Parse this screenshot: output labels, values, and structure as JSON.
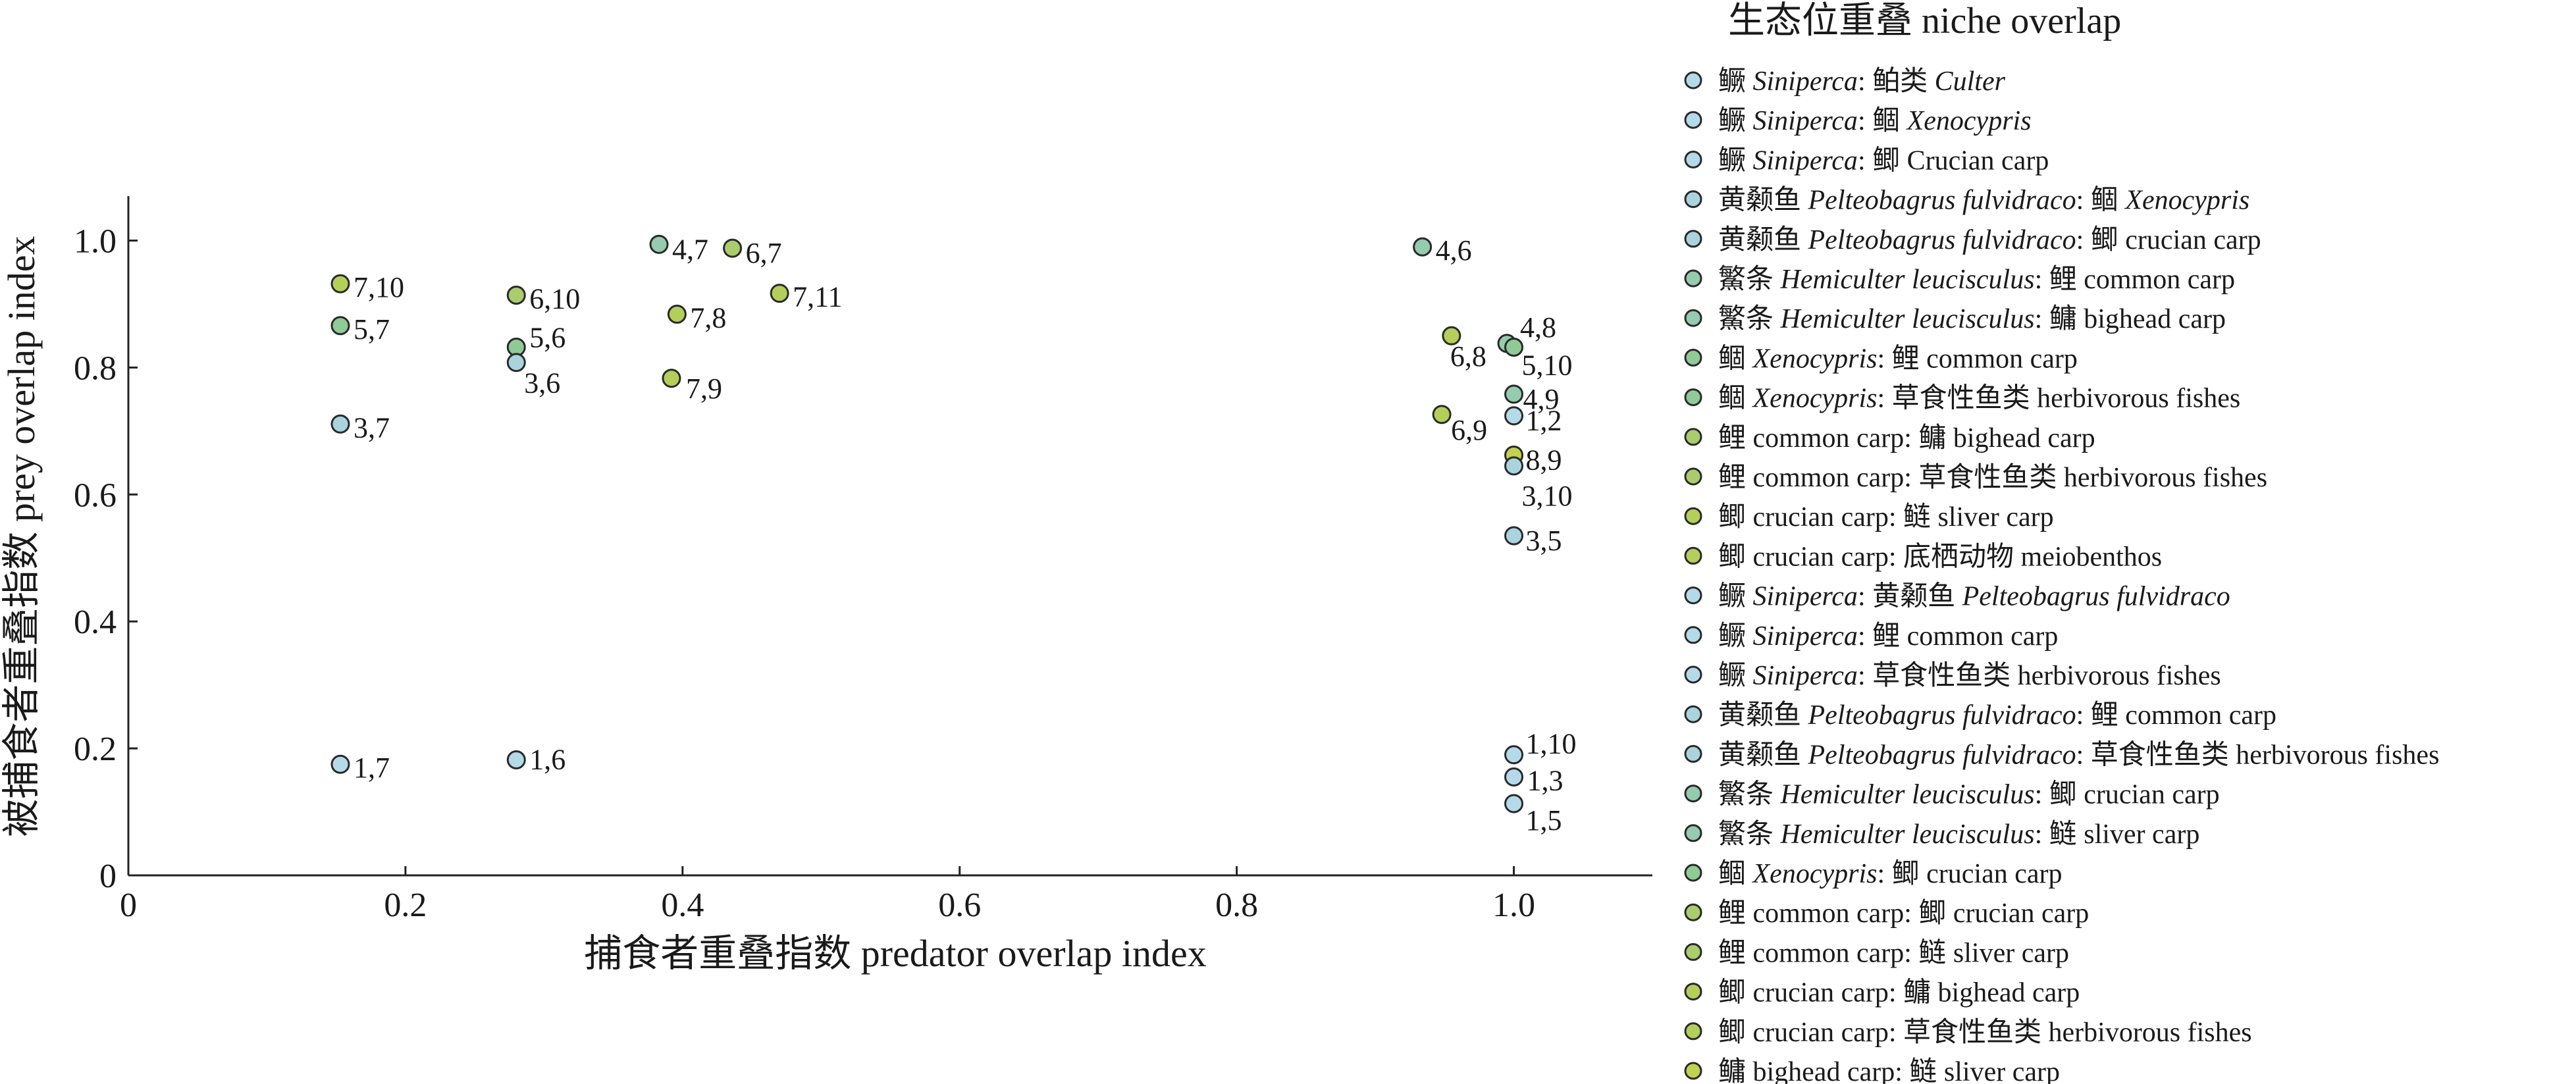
{
  "chart_data": {
    "type": "scatter",
    "xlabel": "捕食者重叠指数 predator overlap index",
    "ylabel": "被捕食者重叠指数 prey overlap index",
    "xlim": [
      0,
      1.1
    ],
    "ylim": [
      0,
      1.07
    ],
    "x_ticks": [
      0,
      0.2,
      0.4,
      0.6,
      0.8,
      1.0
    ],
    "x_tick_labels": [
      "0",
      "0.2",
      "0.4",
      "0.6",
      "0.8",
      "1.0"
    ],
    "y_ticks": [
      0,
      0.2,
      0.4,
      0.6,
      0.8,
      1.0
    ],
    "y_tick_labels": [
      "0",
      "0.2",
      "0.4",
      "0.6",
      "0.8",
      "1.0"
    ],
    "legend_title": "生态位重叠 niche overlap",
    "legend_position": "right",
    "grid": false,
    "points": [
      {
        "label": "7,10",
        "x": 0.153,
        "y": 0.932,
        "color": "#b3cf5a"
      },
      {
        "label": "5,7",
        "x": 0.153,
        "y": 0.866,
        "color": "#8fcb96"
      },
      {
        "label": "3,7",
        "x": 0.153,
        "y": 0.711,
        "color": "#a9d4dd"
      },
      {
        "label": "1,7",
        "x": 0.153,
        "y": 0.175,
        "color": "#b4daea"
      },
      {
        "label": "6,10",
        "x": 0.28,
        "y": 0.914,
        "color": "#a9cd6c"
      },
      {
        "label": "5,6",
        "x": 0.28,
        "y": 0.832,
        "color": "#8fcb96"
      },
      {
        "label": "3,6",
        "x": 0.28,
        "y": 0.808,
        "color": "#a9d4dd"
      },
      {
        "label": "1,6",
        "x": 0.28,
        "y": 0.182,
        "color": "#b4daea"
      },
      {
        "label": "4,7",
        "x": 0.383,
        "y": 0.994,
        "color": "#95cbae"
      },
      {
        "label": "6,7",
        "x": 0.436,
        "y": 0.988,
        "color": "#a9cd6c"
      },
      {
        "label": "7,8",
        "x": 0.396,
        "y": 0.884,
        "color": "#b3cf5a"
      },
      {
        "label": "7,11",
        "x": 0.47,
        "y": 0.917,
        "color": "#b3cf5a"
      },
      {
        "label": "7,9",
        "x": 0.392,
        "y": 0.783,
        "color": "#b3cf5a"
      },
      {
        "label": "4,6",
        "x": 0.934,
        "y": 0.99,
        "color": "#95cbae"
      },
      {
        "label": "6,8",
        "x": 0.955,
        "y": 0.85,
        "color": "#b3cf5a"
      },
      {
        "label": "4,8",
        "x": 0.995,
        "y": 0.838,
        "color": "#95cbae"
      },
      {
        "label": "5,10",
        "x": 1.0,
        "y": 0.832,
        "color": "#8fcb96"
      },
      {
        "label": "4,9",
        "x": 1.0,
        "y": 0.758,
        "color": "#95cbae"
      },
      {
        "label": "6,9",
        "x": 0.948,
        "y": 0.726,
        "color": "#b3cf5a"
      },
      {
        "label": "1,2",
        "x": 1.0,
        "y": 0.724,
        "color": "#b4daea"
      },
      {
        "label": "8,9",
        "x": 1.0,
        "y": 0.662,
        "color": "#c2d14f"
      },
      {
        "label": "3,10",
        "x": 1.0,
        "y": 0.645,
        "color": "#a9d4dd"
      },
      {
        "label": "3,5",
        "x": 1.0,
        "y": 0.535,
        "color": "#a9d4dd"
      },
      {
        "label": "1,10",
        "x": 1.0,
        "y": 0.19,
        "color": "#b4daea"
      },
      {
        "label": "1,3",
        "x": 1.0,
        "y": 0.155,
        "color": "#b4daea"
      },
      {
        "label": "1,5",
        "x": 1.0,
        "y": 0.113,
        "color": "#b4daea"
      }
    ],
    "legend": [
      {
        "runs": [
          {
            "t": "鳜 "
          },
          {
            "t": "Siniperca",
            "i": true
          },
          {
            "t": ": 鲌类 "
          },
          {
            "t": "Culter",
            "i": true
          }
        ],
        "color": "#b4daea"
      },
      {
        "runs": [
          {
            "t": "鳜 "
          },
          {
            "t": "Siniperca",
            "i": true
          },
          {
            "t": ": 鲴 "
          },
          {
            "t": "Xenocypris",
            "i": true
          }
        ],
        "color": "#b4daea"
      },
      {
        "runs": [
          {
            "t": "鳜 "
          },
          {
            "t": "Siniperca",
            "i": true
          },
          {
            "t": ": 鲫 Crucian carp"
          }
        ],
        "color": "#b4daea"
      },
      {
        "runs": [
          {
            "t": "黄颡鱼 "
          },
          {
            "t": "Pelteobagrus fulvidraco",
            "i": true
          },
          {
            "t": ": 鲴 "
          },
          {
            "t": "Xenocypris",
            "i": true
          }
        ],
        "color": "#a9d4dd"
      },
      {
        "runs": [
          {
            "t": "黄颡鱼 "
          },
          {
            "t": "Pelteobagrus fulvidraco",
            "i": true
          },
          {
            "t": ": 鲫 crucian carp"
          }
        ],
        "color": "#a9d4dd"
      },
      {
        "runs": [
          {
            "t": "鰵条 "
          },
          {
            "t": "Hemiculter leucisculus",
            "i": true
          },
          {
            "t": ": 鲤 common carp"
          }
        ],
        "color": "#95cbae"
      },
      {
        "runs": [
          {
            "t": "鰵条 "
          },
          {
            "t": "Hemiculter leucisculus",
            "i": true
          },
          {
            "t": ": 鳙 bighead carp"
          }
        ],
        "color": "#95cbae"
      },
      {
        "runs": [
          {
            "t": "鲴 "
          },
          {
            "t": "Xenocypris",
            "i": true
          },
          {
            "t": ": 鲤 common carp"
          }
        ],
        "color": "#8fcb96"
      },
      {
        "runs": [
          {
            "t": "鲴 "
          },
          {
            "t": "Xenocypris",
            "i": true
          },
          {
            "t": ": 草食性鱼类 herbivorous fishes"
          }
        ],
        "color": "#8fcb96"
      },
      {
        "runs": [
          {
            "t": "鲤 common carp: 鳙 bighead carp"
          }
        ],
        "color": "#a9cd6c"
      },
      {
        "runs": [
          {
            "t": "鲤 common carp: 草食性鱼类 herbivorous fishes"
          }
        ],
        "color": "#a9cd6c"
      },
      {
        "runs": [
          {
            "t": "鲫 crucian carp: 鲢 sliver carp"
          }
        ],
        "color": "#b3cf5a"
      },
      {
        "runs": [
          {
            "t": "鲫 crucian carp: 底栖动物 meiobenthos"
          }
        ],
        "color": "#b3cf5a"
      },
      {
        "runs": [
          {
            "t": "鳜 "
          },
          {
            "t": "Siniperca",
            "i": true
          },
          {
            "t": ": 黄颡鱼 "
          },
          {
            "t": "Pelteobagrus fulvidraco",
            "i": true
          }
        ],
        "color": "#b4daea"
      },
      {
        "runs": [
          {
            "t": "鳜 "
          },
          {
            "t": "Siniperca",
            "i": true
          },
          {
            "t": ": 鲤 common carp"
          }
        ],
        "color": "#b4daea"
      },
      {
        "runs": [
          {
            "t": "鳜 "
          },
          {
            "t": "Siniperca",
            "i": true
          },
          {
            "t": ": 草食性鱼类 herbivorous fishes"
          }
        ],
        "color": "#b4daea"
      },
      {
        "runs": [
          {
            "t": "黄颡鱼 "
          },
          {
            "t": "Pelteobagrus fulvidraco",
            "i": true
          },
          {
            "t": ": 鲤 common carp"
          }
        ],
        "color": "#a9d4dd"
      },
      {
        "runs": [
          {
            "t": "黄颡鱼 "
          },
          {
            "t": "Pelteobagrus fulvidraco",
            "i": true
          },
          {
            "t": ": 草食性鱼类 herbivorous fishes"
          }
        ],
        "color": "#a9d4dd"
      },
      {
        "runs": [
          {
            "t": "鰵条 "
          },
          {
            "t": "Hemiculter leucisculus",
            "i": true
          },
          {
            "t": ": 鲫 crucian carp"
          }
        ],
        "color": "#95cbae"
      },
      {
        "runs": [
          {
            "t": "鰵条 "
          },
          {
            "t": "Hemiculter leucisculus",
            "i": true
          },
          {
            "t": ": 鲢 sliver carp"
          }
        ],
        "color": "#95cbae"
      },
      {
        "runs": [
          {
            "t": "鲴 "
          },
          {
            "t": "Xenocypris",
            "i": true
          },
          {
            "t": ": 鲫 crucian carp"
          }
        ],
        "color": "#8fcb96"
      },
      {
        "runs": [
          {
            "t": "鲤 common carp: 鲫 crucian carp"
          }
        ],
        "color": "#a9cd6c"
      },
      {
        "runs": [
          {
            "t": "鲤 common carp: 鲢 sliver carp"
          }
        ],
        "color": "#a9cd6c"
      },
      {
        "runs": [
          {
            "t": "鲫 crucian carp: 鳙 bighead carp"
          }
        ],
        "color": "#b3cf5a"
      },
      {
        "runs": [
          {
            "t": "鲫 crucian carp: 草食性鱼类 herbivorous fishes"
          }
        ],
        "color": "#b3cf5a"
      },
      {
        "runs": [
          {
            "t": "鳙 bighead carp: 鲢 sliver carp"
          }
        ],
        "color": "#c2d14f"
      }
    ]
  }
}
